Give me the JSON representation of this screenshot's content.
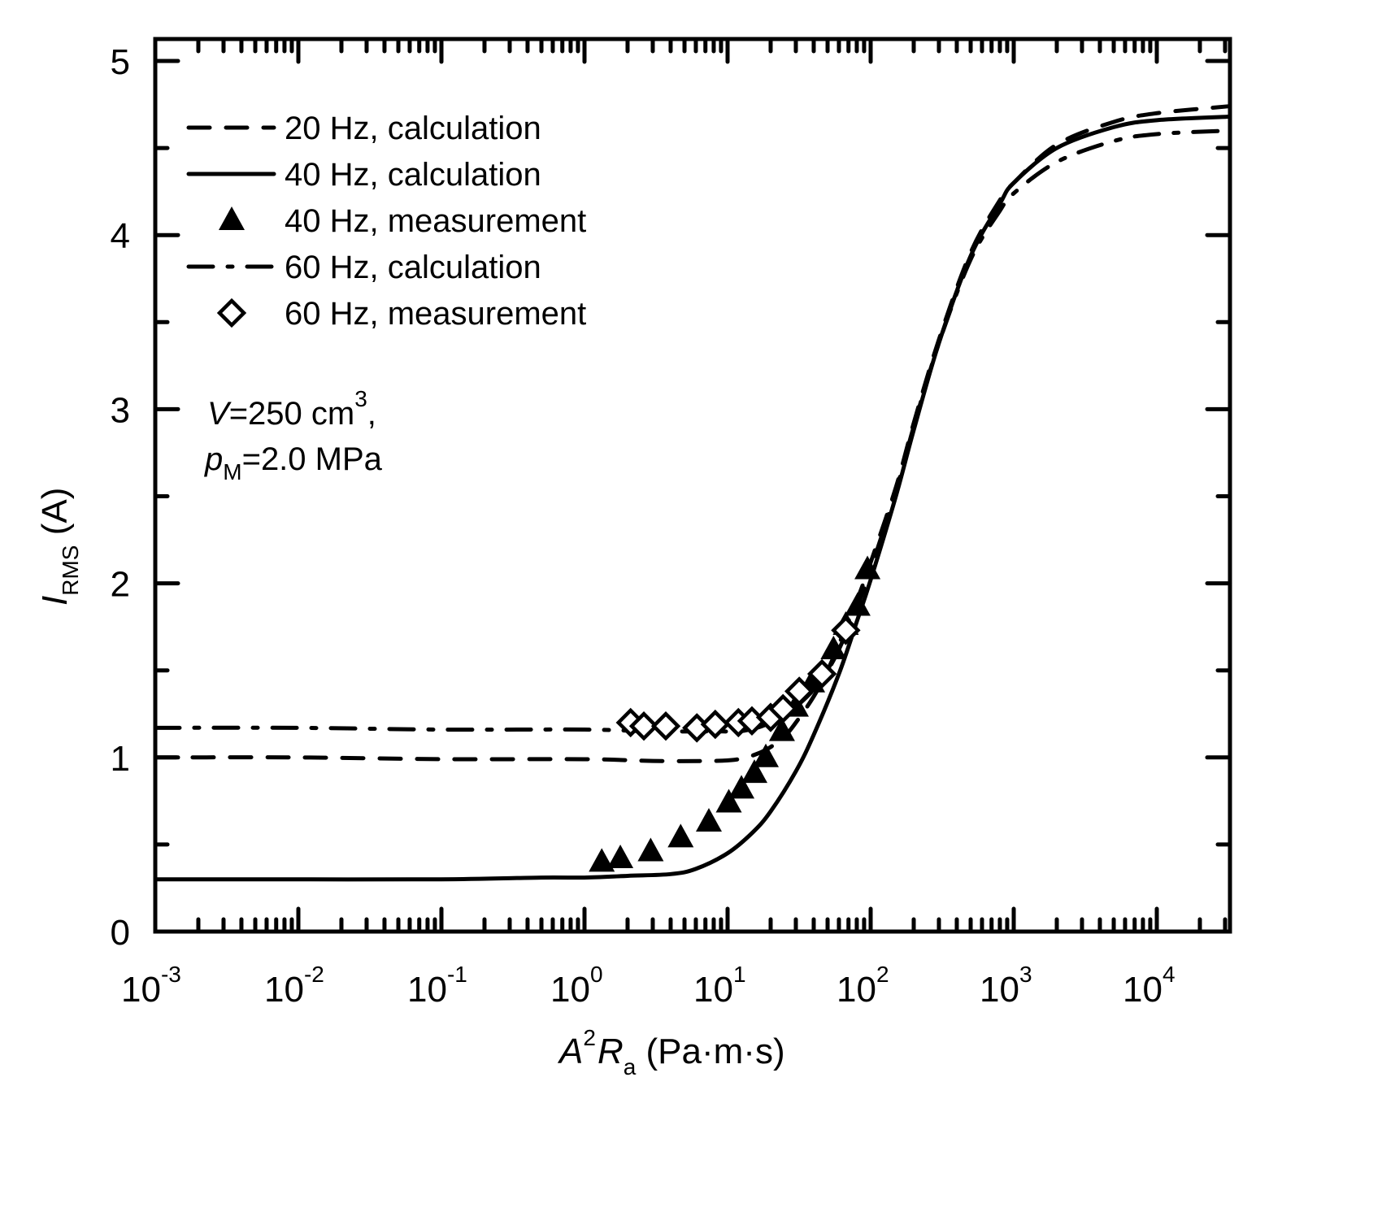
{
  "chart_data": {
    "type": "line",
    "title": "",
    "xlabel": {
      "base_a": "A",
      "sup": "2",
      "base_b": "R",
      "sub": "a",
      "unit": " (Pa·m·s)"
    },
    "ylabel": {
      "base": "I",
      "sub": "RMS",
      "unit": " (A)"
    },
    "xscale": "log",
    "xlim": [
      0.001,
      32000
    ],
    "ylim": [
      0,
      5
    ],
    "x_ticks": [
      {
        "value": 0.001,
        "base": "10",
        "exp": "-3"
      },
      {
        "value": 0.01,
        "base": "10",
        "exp": "-2"
      },
      {
        "value": 0.1,
        "base": "10",
        "exp": "-1"
      },
      {
        "value": 1,
        "base": "10",
        "exp": "0"
      },
      {
        "value": 10,
        "base": "10",
        "exp": "1"
      },
      {
        "value": 100,
        "base": "10",
        "exp": "2"
      },
      {
        "value": 1000,
        "base": "10",
        "exp": "3"
      },
      {
        "value": 10000,
        "base": "10",
        "exp": "4"
      }
    ],
    "y_ticks": [
      0,
      1,
      2,
      3,
      4,
      5
    ],
    "y_minor_step": 0.5,
    "grid": false,
    "legend_position": "top-left",
    "annotation": {
      "line1": {
        "var": "V",
        "text": "=250 cm",
        "sup": "3",
        "tail": ","
      },
      "line2": {
        "var": "p",
        "sub": "M",
        "text": "=2.0 MPa"
      }
    },
    "series": [
      {
        "name": "20 Hz, calculation",
        "style": "dashed",
        "x": [
          0.001,
          0.01,
          0.1,
          1,
          3,
          8,
          12,
          16,
          20,
          25,
          30,
          40,
          50,
          60,
          80,
          100,
          150,
          200,
          300,
          500,
          800,
          1000,
          2000,
          5000,
          10000,
          32000
        ],
        "y": [
          1.0,
          1.0,
          0.99,
          0.99,
          0.98,
          0.98,
          0.99,
          1.02,
          1.06,
          1.12,
          1.2,
          1.35,
          1.5,
          1.65,
          1.9,
          2.12,
          2.55,
          2.92,
          3.4,
          3.9,
          4.2,
          4.3,
          4.52,
          4.65,
          4.7,
          4.74
        ]
      },
      {
        "name": "40 Hz, calculation",
        "style": "solid",
        "x": [
          0.001,
          0.01,
          0.1,
          0.5,
          1,
          2,
          4,
          6,
          10,
          15,
          20,
          30,
          40,
          60,
          80,
          100,
          150,
          200,
          300,
          500,
          800,
          1000,
          2000,
          5000,
          10000,
          32000
        ],
        "y": [
          0.3,
          0.3,
          0.3,
          0.31,
          0.31,
          0.32,
          0.33,
          0.36,
          0.45,
          0.57,
          0.69,
          0.92,
          1.13,
          1.48,
          1.78,
          2.02,
          2.5,
          2.88,
          3.38,
          3.88,
          4.18,
          4.3,
          4.5,
          4.62,
          4.66,
          4.68
        ]
      },
      {
        "name": "60 Hz, calculation",
        "style": "dashdot",
        "x": [
          0.001,
          0.01,
          0.1,
          1,
          3,
          8,
          12,
          16,
          20,
          25,
          30,
          40,
          50,
          60,
          80,
          100,
          150,
          200,
          300,
          500,
          800,
          1000,
          2000,
          5000,
          10000,
          32000
        ],
        "y": [
          1.17,
          1.17,
          1.16,
          1.16,
          1.15,
          1.15,
          1.15,
          1.17,
          1.2,
          1.24,
          1.29,
          1.39,
          1.5,
          1.62,
          1.86,
          2.08,
          2.53,
          2.9,
          3.38,
          3.86,
          4.14,
          4.24,
          4.42,
          4.54,
          4.58,
          4.6
        ]
      },
      {
        "name": "40 Hz, measurement",
        "style": "marker",
        "marker": "filled-triangle",
        "x": [
          1.32,
          1.78,
          2.9,
          4.7,
          7.4,
          10.2,
          12.5,
          15.4,
          18.5,
          24,
          30,
          39,
          55,
          67,
          81,
          95
        ],
        "y": [
          0.4,
          0.42,
          0.46,
          0.54,
          0.63,
          0.74,
          0.82,
          0.91,
          1.0,
          1.15,
          1.29,
          1.43,
          1.62,
          1.76,
          1.87,
          2.08
        ]
      },
      {
        "name": "60 Hz, measurement",
        "style": "marker",
        "marker": "open-diamond",
        "x": [
          2.1,
          2.6,
          3.7,
          6.1,
          8.2,
          11.9,
          14.8,
          20,
          24.4,
          31.7,
          45.7,
          67
        ],
        "y": [
          1.2,
          1.18,
          1.18,
          1.17,
          1.19,
          1.2,
          1.21,
          1.23,
          1.28,
          1.38,
          1.48,
          1.73
        ]
      }
    ],
    "legend_order": [
      "20 Hz, calculation",
      "40 Hz, calculation",
      "40 Hz, measurement",
      "60 Hz, calculation",
      "60 Hz, measurement"
    ]
  }
}
